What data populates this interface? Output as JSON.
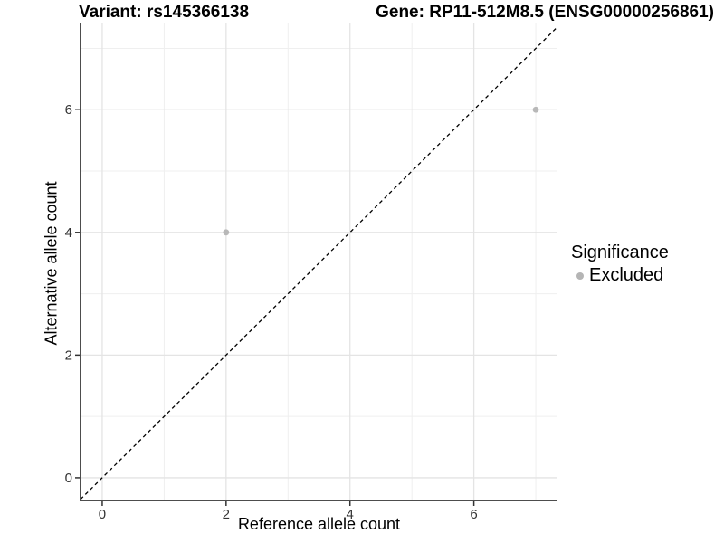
{
  "chart_data": {
    "type": "scatter",
    "title_left": "Variant: rs145366138",
    "title_right": "Gene: RP11-512M8.5 (ENSG00000256861)",
    "xlabel": "Reference allele count",
    "ylabel": "Alternative allele count",
    "xlim": [
      -0.35,
      7.35
    ],
    "ylim": [
      -0.37,
      7.42
    ],
    "x_ticks": [
      0,
      2,
      4,
      6
    ],
    "y_ticks": [
      0,
      2,
      4,
      6
    ],
    "x_minor_ticks": [
      1,
      3,
      5,
      7
    ],
    "y_minor_ticks": [
      1,
      3,
      5,
      7
    ],
    "grid": "major+minor",
    "legend_position": "right",
    "reference_line": {
      "type": "identity",
      "style": "dashed",
      "color": "#000000",
      "dash": "4 3.5"
    },
    "series": [
      {
        "name": "Excluded",
        "color": "#b8b8b8",
        "point_radius": 3.4,
        "points": [
          [
            2,
            4
          ],
          [
            7,
            6
          ]
        ]
      }
    ],
    "legend": {
      "title": "Significance",
      "items": [
        {
          "label": "Excluded",
          "color": "#b5b5b5",
          "marker": "circle"
        }
      ]
    },
    "colors": {
      "background": "#ffffff",
      "grid_major": "#e4e4e4",
      "grid_minor": "#efefef",
      "axis_line": "#4d4d4d",
      "tick_mark": "#333333",
      "tick_label": "#333333",
      "text": "#000000"
    }
  }
}
